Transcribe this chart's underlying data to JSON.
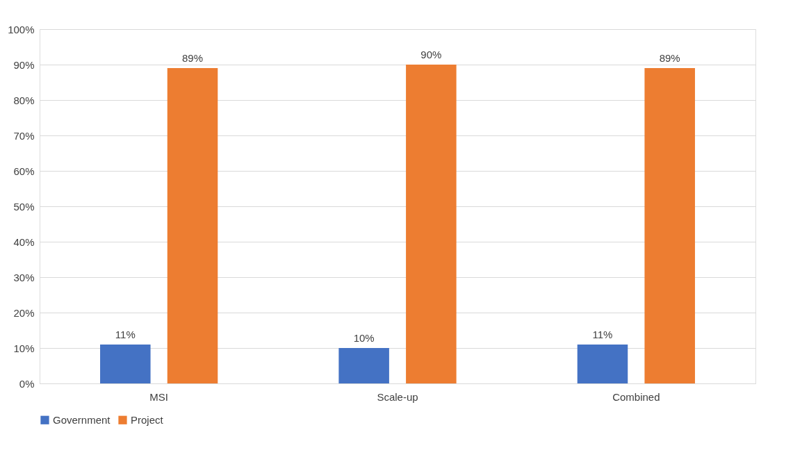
{
  "chart_data": {
    "type": "bar",
    "categories": [
      "MSI",
      "Scale-up",
      "Combined"
    ],
    "series": [
      {
        "name": "Government",
        "color": "#4472c4",
        "values": [
          11,
          10,
          11
        ],
        "value_labels": [
          "11%",
          "10%",
          "11%"
        ]
      },
      {
        "name": "Project",
        "color": "#ed7d31",
        "values": [
          89,
          90,
          89
        ],
        "value_labels": [
          "89%",
          "90%",
          "89%"
        ]
      }
    ],
    "ylim": [
      0,
      100
    ],
    "yticks": [
      {
        "value": 0,
        "label": "0%"
      },
      {
        "value": 10,
        "label": "10%"
      },
      {
        "value": 20,
        "label": "20%"
      },
      {
        "value": 30,
        "label": "30%"
      },
      {
        "value": 40,
        "label": "40%"
      },
      {
        "value": 50,
        "label": "50%"
      },
      {
        "value": 60,
        "label": "60%"
      },
      {
        "value": 70,
        "label": "70%"
      },
      {
        "value": 80,
        "label": "80%"
      },
      {
        "value": 90,
        "label": "90%"
      },
      {
        "value": 100,
        "label": "100%"
      }
    ],
    "grid": "y",
    "legend": "bottom"
  }
}
